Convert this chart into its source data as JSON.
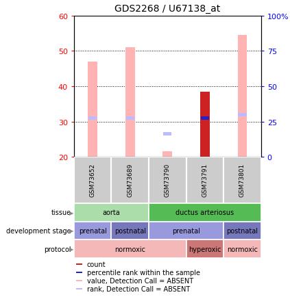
{
  "title": "GDS2268 / U67138_at",
  "samples": [
    "GSM73652",
    "GSM73689",
    "GSM73790",
    "GSM73791",
    "GSM73801"
  ],
  "bar_values": [
    47.0,
    51.0,
    21.5,
    38.5,
    54.5
  ],
  "bar_colors_value": [
    "#ffb3b3",
    "#ffb3b3",
    "#ffb3b3",
    "#cc2222",
    "#ffb3b3"
  ],
  "rank_values": [
    31.0,
    31.0,
    26.5,
    31.0,
    32.0
  ],
  "rank_colors": [
    "#bbbbff",
    "#bbbbff",
    "#bbbbff",
    "#2222cc",
    "#bbbbff"
  ],
  "ymin": 20,
  "ymax": 60,
  "yticks": [
    20,
    30,
    40,
    50,
    60
  ],
  "y2min": 0,
  "y2max": 100,
  "y2ticks": [
    0,
    25,
    50,
    75,
    100
  ],
  "y2ticklabels": [
    "0",
    "25",
    "50",
    "75",
    "100%"
  ],
  "tissue_labels": [
    [
      "aorta",
      0,
      2,
      "#aaddaa"
    ],
    [
      "ductus arteriosus",
      2,
      5,
      "#55bb55"
    ]
  ],
  "devstage_labels": [
    [
      "prenatal",
      0,
      1,
      "#9999dd"
    ],
    [
      "postnatal",
      1,
      2,
      "#7777bb"
    ],
    [
      "prenatal",
      2,
      4,
      "#9999dd"
    ],
    [
      "postnatal",
      4,
      5,
      "#7777bb"
    ]
  ],
  "protocol_labels": [
    [
      "normoxic",
      0,
      3,
      "#f5b8b8"
    ],
    [
      "hyperoxic",
      3,
      4,
      "#cc7777"
    ],
    [
      "normoxic",
      4,
      5,
      "#f5b8b8"
    ]
  ],
  "left_labels": [
    "tissue",
    "development stage",
    "protocol"
  ],
  "legend_items": [
    {
      "color": "#cc2222",
      "label": "count"
    },
    {
      "color": "#2222cc",
      "label": "percentile rank within the sample"
    },
    {
      "color": "#ffb3b3",
      "label": "value, Detection Call = ABSENT"
    },
    {
      "color": "#bbbbff",
      "label": "rank, Detection Call = ABSENT"
    }
  ],
  "bar_bottom": 20,
  "bar_width": 0.25
}
